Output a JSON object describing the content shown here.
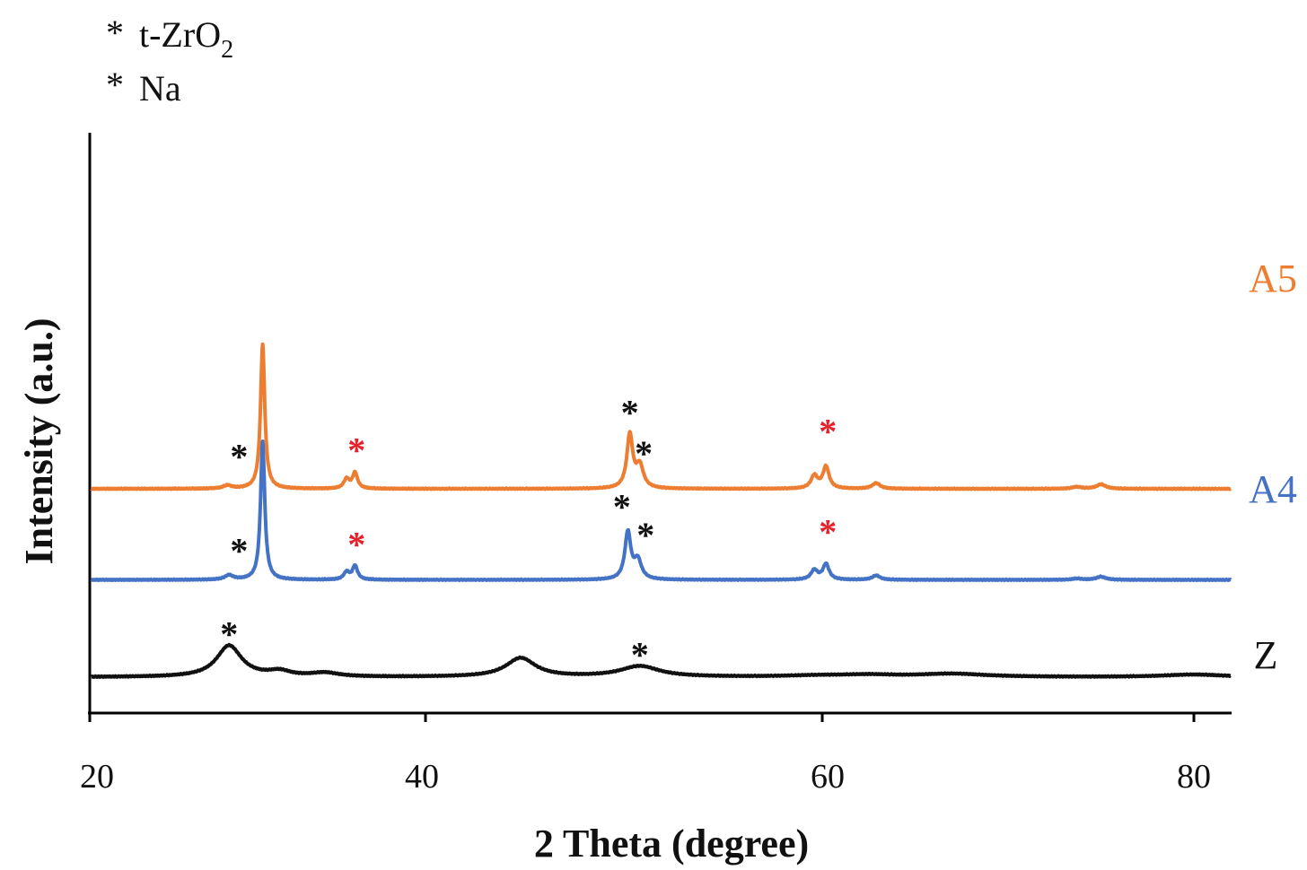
{
  "chart_data": {
    "type": "line",
    "title": "",
    "xlabel": "2 Theta (degree)",
    "ylabel": "Intensity (a.u.)",
    "xlim": [
      20,
      82
    ],
    "xticks": [
      20,
      40,
      60,
      80
    ],
    "xtick_labels": [
      "20",
      "40",
      "60",
      "80"
    ],
    "yticks": "none",
    "colors": {
      "A5": "#ED7D31",
      "A4": "#4472C4",
      "Z": "#111111",
      "t_ZrO2_marker": "#111111",
      "Na_marker": "#E8202A"
    },
    "legend": {
      "placement": "top-left",
      "entries": [
        {
          "symbol": "*",
          "label": "t-ZrO",
          "subscript": "2",
          "color": "#111111"
        },
        {
          "symbol": "*",
          "label": "Na",
          "color": "#E8202A"
        }
      ]
    },
    "series": [
      {
        "name": "A5",
        "offset": 3.0,
        "peaks": [
          {
            "x": 28.2,
            "h": 0.05,
            "w": 0.3
          },
          {
            "x": 30.3,
            "h": 2.3,
            "w": 0.15
          },
          {
            "x": 35.3,
            "h": 0.15,
            "w": 0.2
          },
          {
            "x": 35.8,
            "h": 0.25,
            "w": 0.18
          },
          {
            "x": 50.3,
            "h": 0.85,
            "w": 0.18
          },
          {
            "x": 50.8,
            "h": 0.35,
            "w": 0.22
          },
          {
            "x": 59.6,
            "h": 0.2,
            "w": 0.2
          },
          {
            "x": 60.2,
            "h": 0.35,
            "w": 0.2
          },
          {
            "x": 62.9,
            "h": 0.09,
            "w": 0.25
          },
          {
            "x": 73.7,
            "h": 0.03,
            "w": 0.3
          },
          {
            "x": 75.0,
            "h": 0.07,
            "w": 0.3
          }
        ],
        "markers": [
          {
            "x": 28.9,
            "y": 3.55,
            "type": "t-ZrO2"
          },
          {
            "x": 35.9,
            "y": 3.65,
            "type": "Na"
          },
          {
            "x": 50.3,
            "y": 4.25,
            "type": "t-ZrO2"
          },
          {
            "x": 51.0,
            "y": 3.6,
            "type": "t-ZrO2"
          },
          {
            "x": 60.3,
            "y": 3.95,
            "type": "Na"
          }
        ]
      },
      {
        "name": "A4",
        "offset": 1.55,
        "peaks": [
          {
            "x": 28.3,
            "h": 0.07,
            "w": 0.3
          },
          {
            "x": 30.3,
            "h": 2.2,
            "w": 0.15
          },
          {
            "x": 35.3,
            "h": 0.12,
            "w": 0.2
          },
          {
            "x": 35.8,
            "h": 0.22,
            "w": 0.18
          },
          {
            "x": 50.2,
            "h": 0.75,
            "w": 0.18
          },
          {
            "x": 50.7,
            "h": 0.3,
            "w": 0.22
          },
          {
            "x": 59.6,
            "h": 0.15,
            "w": 0.2
          },
          {
            "x": 60.2,
            "h": 0.25,
            "w": 0.2
          },
          {
            "x": 62.9,
            "h": 0.07,
            "w": 0.25
          },
          {
            "x": 73.7,
            "h": 0.02,
            "w": 0.3
          },
          {
            "x": 75.0,
            "h": 0.05,
            "w": 0.3
          }
        ],
        "markers": [
          {
            "x": 28.9,
            "y": 2.05,
            "type": "t-ZrO2"
          },
          {
            "x": 35.9,
            "y": 2.15,
            "type": "Na"
          },
          {
            "x": 49.9,
            "y": 2.75,
            "type": "t-ZrO2"
          },
          {
            "x": 51.1,
            "y": 2.3,
            "type": "t-ZrO2"
          },
          {
            "x": 60.3,
            "y": 2.35,
            "type": "Na"
          }
        ]
      },
      {
        "name": "Z",
        "offset": 0.0,
        "peaks": [
          {
            "x": 28.3,
            "h": 0.5,
            "w": 0.9
          },
          {
            "x": 31.3,
            "h": 0.08,
            "w": 0.8
          },
          {
            "x": 34.0,
            "h": 0.06,
            "w": 1.0
          },
          {
            "x": 44.8,
            "h": 0.3,
            "w": 0.9
          },
          {
            "x": 50.8,
            "h": 0.17,
            "w": 1.2
          },
          {
            "x": 59.8,
            "h": 0.02,
            "w": 2.0
          },
          {
            "x": 62.5,
            "h": 0.03,
            "w": 1.8
          },
          {
            "x": 67.0,
            "h": 0.05,
            "w": 2.2
          },
          {
            "x": 80.0,
            "h": 0.04,
            "w": 2.0
          }
        ],
        "markers": [
          {
            "x": 28.3,
            "y": 0.72,
            "type": "t-ZrO2"
          },
          {
            "x": 50.8,
            "y": 0.39,
            "type": "t-ZrO2"
          }
        ]
      }
    ]
  }
}
